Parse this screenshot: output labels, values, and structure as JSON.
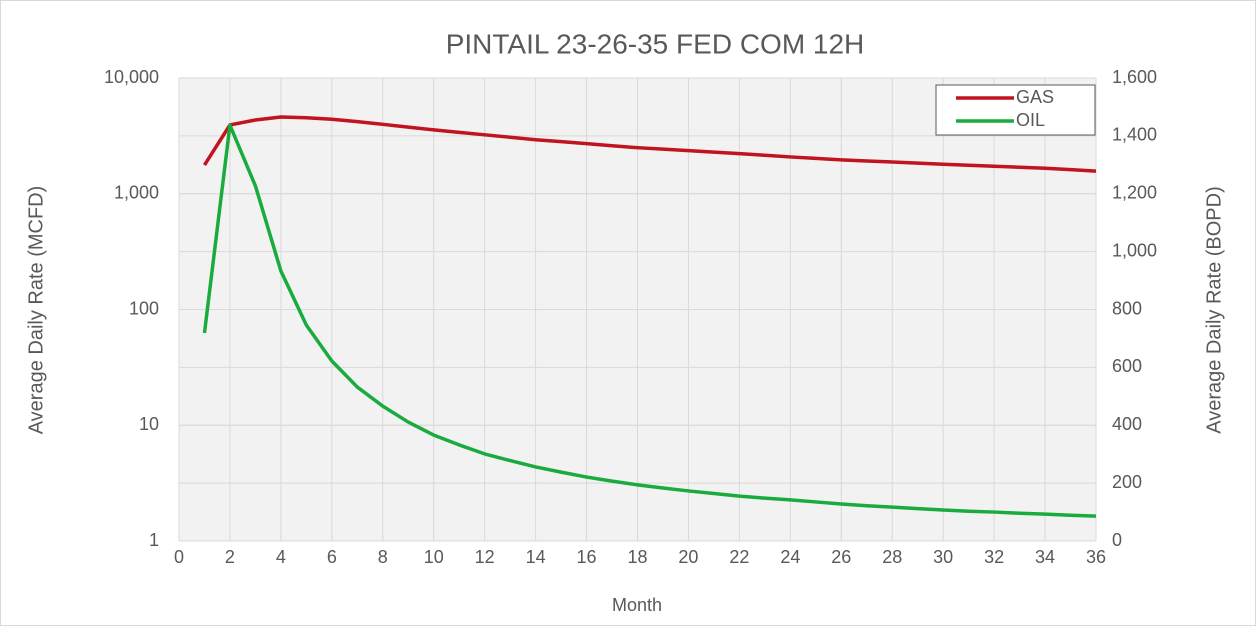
{
  "chart_data": {
    "type": "line",
    "title": "PINTAIL 23-26-35 FED COM 12H",
    "x_label": "Month",
    "y_label": "Average Daily Rate (MCFD)",
    "y2_label": "Average Daily Rate (BOPD)",
    "x": [
      1,
      2,
      3,
      4,
      5,
      6,
      7,
      8,
      9,
      10,
      11,
      12,
      13,
      14,
      15,
      16,
      17,
      18,
      19,
      20,
      21,
      22,
      23,
      24,
      25,
      26,
      27,
      28,
      29,
      30,
      31,
      32,
      33,
      34,
      35,
      36
    ],
    "series": [
      {
        "name": "GAS",
        "color": "#c0141e",
        "axis": "y",
        "values": [
          1770,
          3930,
          4340,
          4600,
          4530,
          4400,
          4200,
          3980,
          3760,
          3560,
          3390,
          3230,
          3080,
          2930,
          2820,
          2710,
          2600,
          2500,
          2430,
          2360,
          2290,
          2220,
          2150,
          2080,
          2020,
          1960,
          1920,
          1880,
          1840,
          1800,
          1765,
          1730,
          1695,
          1660,
          1615,
          1570
        ]
      },
      {
        "name": "OIL",
        "color": "#1aab3e",
        "axis": "y2",
        "values": [
          719,
          1437,
          1227,
          933,
          746,
          622,
          532,
          466,
          411,
          366,
          332,
          301,
          278,
          256,
          238,
          221,
          207,
          194,
          183,
          173,
          164,
          155,
          148,
          142,
          135,
          128,
          122,
          117,
          112,
          107,
          103,
          100,
          96,
          93,
          89,
          86
        ]
      }
    ],
    "xlim": [
      0,
      36
    ],
    "xticks": [
      0,
      2,
      4,
      6,
      8,
      10,
      12,
      14,
      16,
      18,
      20,
      22,
      24,
      26,
      28,
      30,
      32,
      34,
      36
    ],
    "ylim": [
      1,
      10000
    ],
    "y_log": true,
    "yticks": [
      1,
      10,
      100,
      {
        "value": 1000,
        "label": "1,000"
      },
      {
        "value": 10000,
        "label": "10,000"
      }
    ],
    "y2lim": [
      0,
      1600
    ],
    "y2ticks": [
      0,
      200,
      400,
      600,
      800,
      {
        "value": 1000,
        "label": "1,000"
      },
      {
        "value": 1200,
        "label": "1,200"
      },
      {
        "value": 1400,
        "label": "1,400"
      },
      {
        "value": 1600,
        "label": "1,600"
      }
    ],
    "grid": true,
    "legend": "top-right"
  }
}
